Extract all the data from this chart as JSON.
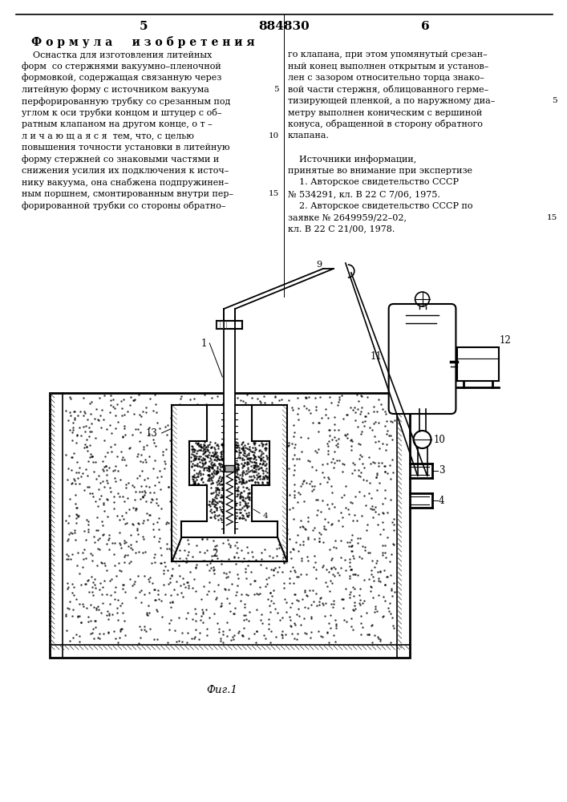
{
  "page_number_left": "5",
  "patent_number": "884830",
  "page_number_right": "6",
  "title_formula": "Ф о р м у л а     и з о б р е т е н и я",
  "left_col_lines": [
    "    Оснастка для изготовления литейных",
    "форм  со стержнями вакуумно–пленочной",
    "формовкой, содержащая связанную через",
    "литейную форму с источником вакуума",
    "перфорированную трубку со срезанным под",
    "углом к оси трубки концом и штуцер с об–",
    "ратным клапаном на другом конце, о т –",
    "л и ч а ю щ а я с я  тем, что, с целью",
    "повышения точности установки в литейную",
    "форму стержней со знаковыми частями и",
    "снижения усилия их подключения к источ–",
    "нику вакуума, она снабжена подпружинен–",
    "ным поршнем, смонтированным внутри пер–",
    "форированной трубки со стороны обратно–"
  ],
  "left_linenos": [
    null,
    null,
    null,
    "5",
    null,
    null,
    null,
    "10",
    null,
    null,
    null,
    null,
    "15",
    null
  ],
  "right_col_lines": [
    "го клапана, при этом упомянутый срезан–",
    "ный конец выполнен открытым и установ–",
    "лен с зазором относительно торца знако–",
    "вой части стержня, облицованного герме–",
    "тизирующей пленкой, а по наружному диа–",
    "метру выполнен коническим с вершиной",
    "конуса, обращенной в сторону обратного",
    "клапана.",
    "",
    "    Источники информации,",
    "принятые во внимание при экспертизе",
    "    1. Авторское свидетельство СССР",
    "№ 534291, кл. В 22 С 7/06, 1975.",
    "    2. Авторское свидетельство СССР по",
    "заявке № 2649959/22–02,",
    "кл. В 22 С 21/00, 1978."
  ],
  "right_linenos": [
    null,
    null,
    null,
    null,
    "5",
    null,
    null,
    null,
    null,
    null,
    null,
    null,
    null,
    null,
    "15",
    null
  ],
  "caption": "Фиг.1",
  "bg_color": "#ffffff",
  "text_color": "#000000"
}
